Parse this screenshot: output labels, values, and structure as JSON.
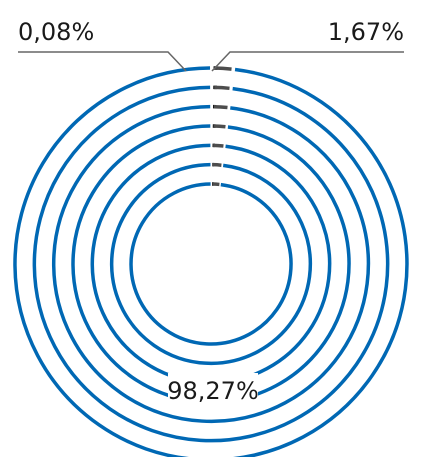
{
  "chart_data": {
    "type": "pie",
    "style": "concentric-rings",
    "ring_count": 7,
    "slices": [
      {
        "label": "98,27%",
        "value": 98.27,
        "color": "#0068b4"
      },
      {
        "label": "1,67%",
        "value": 1.67,
        "color": "#4d4d4d"
      },
      {
        "label": "0,08%",
        "value": 0.08,
        "color": "#000000"
      }
    ],
    "leader_line_color": "#666666",
    "background": "#ffffff"
  }
}
